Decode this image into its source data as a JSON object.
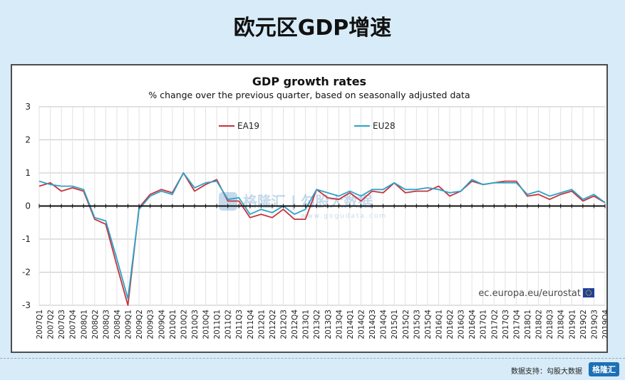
{
  "page_title": "欧元区GDP增速",
  "footer": {
    "credit": "数据支持：勾股大数据",
    "logo_text": "格隆汇"
  },
  "watermark": {
    "text": "格隆汇 | 勾股大数据",
    "url": "www.gogudata.com"
  },
  "source_label": "ec.europa.eu/eurostat",
  "chart_data": {
    "type": "line",
    "title": "GDP growth rates",
    "subtitle": "% change over the previous quarter, based on seasonally adjusted data",
    "ylim": [
      -3,
      3
    ],
    "yticks": [
      3,
      2,
      1,
      0,
      -1,
      -2,
      -3
    ],
    "grid": true,
    "legend_position": "top-center",
    "categories": [
      "2007Q1",
      "2007Q2",
      "2007Q3",
      "2007Q4",
      "2008Q1",
      "2008Q2",
      "2008Q3",
      "2008Q4",
      "2009Q1",
      "2009Q2",
      "2009Q3",
      "2009Q4",
      "2010Q1",
      "2010Q2",
      "2010Q3",
      "2010Q4",
      "2011Q1",
      "2011Q2",
      "2011Q3",
      "2011Q4",
      "2012Q1",
      "2012Q2",
      "2012Q3",
      "2012Q4",
      "2013Q1",
      "2013Q2",
      "2013Q3",
      "2013Q4",
      "2014Q1",
      "2014Q2",
      "2014Q3",
      "2014Q4",
      "2015Q1",
      "2015Q2",
      "2015Q3",
      "2015Q4",
      "2016Q1",
      "2016Q2",
      "2016Q3",
      "2016Q4",
      "2017Q1",
      "2017Q2",
      "2017Q3",
      "2017Q4",
      "2018Q1",
      "2018Q2",
      "2018Q3",
      "2018Q4",
      "2019Q1",
      "2019Q2",
      "2019Q3",
      "2019Q4"
    ],
    "series": [
      {
        "name": "EA19",
        "color": "#c8323c",
        "values": [
          0.6,
          0.7,
          0.45,
          0.55,
          0.45,
          -0.4,
          -0.55,
          -1.8,
          -3.0,
          -0.05,
          0.35,
          0.5,
          0.4,
          1.0,
          0.45,
          0.65,
          0.8,
          0.15,
          0.15,
          -0.35,
          -0.25,
          -0.35,
          -0.1,
          -0.4,
          -0.4,
          0.5,
          0.25,
          0.2,
          0.4,
          0.15,
          0.45,
          0.4,
          0.7,
          0.4,
          0.45,
          0.45,
          0.6,
          0.3,
          0.45,
          0.75,
          0.65,
          0.7,
          0.75,
          0.75,
          0.3,
          0.35,
          0.2,
          0.35,
          0.45,
          0.15,
          0.3,
          0.1
        ]
      },
      {
        "name": "EU28",
        "color": "#2ba3c8",
        "values": [
          0.75,
          0.65,
          0.6,
          0.6,
          0.5,
          -0.35,
          -0.45,
          -1.6,
          -2.8,
          -0.1,
          0.3,
          0.45,
          0.35,
          1.0,
          0.55,
          0.7,
          0.75,
          0.2,
          0.25,
          -0.25,
          -0.1,
          -0.2,
          0.0,
          -0.25,
          -0.1,
          0.5,
          0.4,
          0.3,
          0.45,
          0.3,
          0.5,
          0.5,
          0.7,
          0.5,
          0.5,
          0.55,
          0.5,
          0.4,
          0.45,
          0.8,
          0.65,
          0.7,
          0.7,
          0.7,
          0.35,
          0.45,
          0.3,
          0.4,
          0.5,
          0.2,
          0.35,
          0.1
        ]
      }
    ]
  }
}
